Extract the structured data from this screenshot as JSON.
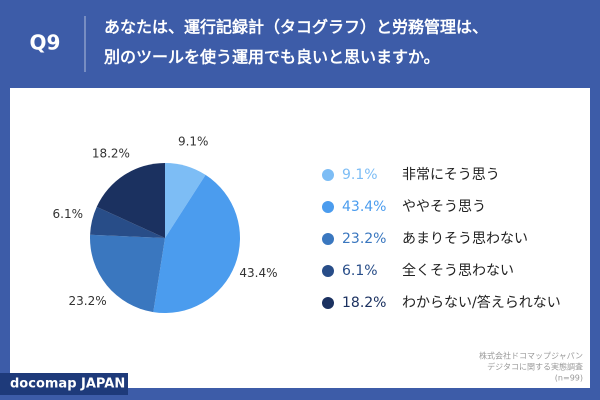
{
  "question_number": "Q9",
  "title_lines": [
    "あなたは、運行記録計（タコグラフ）と労務管理は、",
    "別のツールを使う運用でも良いと思いますか。"
  ],
  "chart_data": {
    "type": "pie",
    "categories": [
      "非常にそう思う",
      "ややそう思う",
      "あまりそう思わない",
      "全くそう思わない",
      "わからない/答えられない"
    ],
    "values": [
      9.1,
      43.4,
      23.2,
      6.1,
      18.2
    ],
    "value_labels": [
      "9.1%",
      "43.4%",
      "23.2%",
      "6.1%",
      "18.2%"
    ],
    "colors": [
      "#7dbdf5",
      "#4b9cee",
      "#3a77bf",
      "#284d88",
      "#1b3160"
    ]
  },
  "source_lines": [
    "株式会社ドコマップジャパン",
    "デジタコに関する実態調査",
    "(n=99)"
  ],
  "brand": "docomap JAPAN"
}
